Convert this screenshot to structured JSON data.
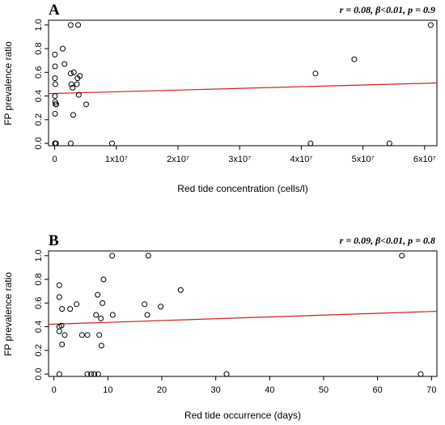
{
  "colors": {
    "axis": "#000000",
    "points": "#000000",
    "fit_line": "#cc2222",
    "background": "#ffffff"
  },
  "chart_data": [
    {
      "type": "scatter",
      "panel_label": "A",
      "stats": "r = 0.08, β<0.01, p = 0.9",
      "xlabel": "Red tide concentration (cells/l)",
      "ylabel": "FP prevalence ratio",
      "xlim": [
        -1000000,
        62000000
      ],
      "ylim": [
        -0.02,
        1.04
      ],
      "x_ticks": [
        {
          "value": 0,
          "label": "0"
        },
        {
          "value": 10000000,
          "label": "1x10⁷"
        },
        {
          "value": 20000000,
          "label": "2x10⁷"
        },
        {
          "value": 30000000,
          "label": "3x10⁷"
        },
        {
          "value": 40000000,
          "label": "4x10⁷"
        },
        {
          "value": 50000000,
          "label": "5x10⁷"
        },
        {
          "value": 60000000,
          "label": "6x10⁷"
        }
      ],
      "y_ticks": [
        {
          "value": 0,
          "label": "0.0"
        },
        {
          "value": 0.2,
          "label": "0.2"
        },
        {
          "value": 0.4,
          "label": "0.4"
        },
        {
          "value": 0.6,
          "label": "0.6"
        },
        {
          "value": 0.8,
          "label": "0.8"
        },
        {
          "value": 1.0,
          "label": "1.0"
        }
      ],
      "points": [
        {
          "x": 20000,
          "y": 0.75
        },
        {
          "x": 50000,
          "y": 0.65
        },
        {
          "x": 30000,
          "y": 0.55
        },
        {
          "x": 100000,
          "y": 0.5
        },
        {
          "x": 40000,
          "y": 0.4
        },
        {
          "x": 80000,
          "y": 0.35
        },
        {
          "x": 150000,
          "y": 0.33
        },
        {
          "x": 250000,
          "y": 0.33
        },
        {
          "x": 60000,
          "y": 0.25
        },
        {
          "x": 50000,
          "y": 0.0
        },
        {
          "x": 120000,
          "y": 0.0
        },
        {
          "x": 200000,
          "y": 0.0
        },
        {
          "x": 1300000,
          "y": 0.8
        },
        {
          "x": 1600000,
          "y": 0.67
        },
        {
          "x": 2600000,
          "y": 1.0
        },
        {
          "x": 3800000,
          "y": 1.0
        },
        {
          "x": 2600000,
          "y": 0.59
        },
        {
          "x": 3100000,
          "y": 0.6
        },
        {
          "x": 3700000,
          "y": 0.55
        },
        {
          "x": 4100000,
          "y": 0.57
        },
        {
          "x": 2700000,
          "y": 0.5
        },
        {
          "x": 3600000,
          "y": 0.5
        },
        {
          "x": 2900000,
          "y": 0.47
        },
        {
          "x": 3900000,
          "y": 0.41
        },
        {
          "x": 5100000,
          "y": 0.33
        },
        {
          "x": 3000000,
          "y": 0.24
        },
        {
          "x": 2600000,
          "y": 0.0
        },
        {
          "x": 9300000,
          "y": 0.0
        },
        {
          "x": 41500000,
          "y": 0.0
        },
        {
          "x": 42300000,
          "y": 0.59
        },
        {
          "x": 48600000,
          "y": 0.71
        },
        {
          "x": 54300000,
          "y": 0.0
        },
        {
          "x": 61000000,
          "y": 1.0
        }
      ],
      "fit_line": {
        "x": [
          -1000000,
          62000000
        ],
        "y": [
          0.42,
          0.51
        ]
      }
    },
    {
      "type": "scatter",
      "panel_label": "B",
      "stats": "r = 0.09, β<0.01, p = 0.8",
      "xlabel": "Red tide occurrence (days)",
      "ylabel": "FP prevalence ratio",
      "xlim": [
        -1,
        71
      ],
      "ylim": [
        -0.02,
        1.04
      ],
      "x_ticks": [
        {
          "value": 0,
          "label": "0"
        },
        {
          "value": 10,
          "label": "10"
        },
        {
          "value": 20,
          "label": "20"
        },
        {
          "value": 30,
          "label": "30"
        },
        {
          "value": 40,
          "label": "40"
        },
        {
          "value": 50,
          "label": "50"
        },
        {
          "value": 60,
          "label": "60"
        },
        {
          "value": 70,
          "label": "70"
        }
      ],
      "y_ticks": [
        {
          "value": 0,
          "label": "0.0"
        },
        {
          "value": 0.2,
          "label": "0.2"
        },
        {
          "value": 0.4,
          "label": "0.4"
        },
        {
          "value": 0.6,
          "label": "0.6"
        },
        {
          "value": 0.8,
          "label": "0.8"
        },
        {
          "value": 1.0,
          "label": "1.0"
        }
      ],
      "points": [
        {
          "x": 1,
          "y": 0.75
        },
        {
          "x": 1,
          "y": 0.65
        },
        {
          "x": 1.5,
          "y": 0.55
        },
        {
          "x": 1,
          "y": 0.4
        },
        {
          "x": 1.4,
          "y": 0.41
        },
        {
          "x": 1,
          "y": 0.36
        },
        {
          "x": 2,
          "y": 0.33
        },
        {
          "x": 1.5,
          "y": 0.25
        },
        {
          "x": 1,
          "y": 0.0
        },
        {
          "x": 3,
          "y": 0.55
        },
        {
          "x": 4.2,
          "y": 0.59
        },
        {
          "x": 5.2,
          "y": 0.33
        },
        {
          "x": 6.2,
          "y": 0.33
        },
        {
          "x": 6.2,
          "y": 0.0
        },
        {
          "x": 6.9,
          "y": 0.0
        },
        {
          "x": 7.5,
          "y": 0.0
        },
        {
          "x": 8.2,
          "y": 0.0
        },
        {
          "x": 7.8,
          "y": 0.5
        },
        {
          "x": 8.1,
          "y": 0.67
        },
        {
          "x": 8.4,
          "y": 0.33
        },
        {
          "x": 8.7,
          "y": 0.47
        },
        {
          "x": 8.8,
          "y": 0.24
        },
        {
          "x": 9.0,
          "y": 0.6
        },
        {
          "x": 9.2,
          "y": 0.8
        },
        {
          "x": 10.8,
          "y": 1.0
        },
        {
          "x": 10.9,
          "y": 0.5
        },
        {
          "x": 16.8,
          "y": 0.59
        },
        {
          "x": 17.3,
          "y": 0.5
        },
        {
          "x": 17.5,
          "y": 1.0
        },
        {
          "x": 19.8,
          "y": 0.57
        },
        {
          "x": 23.5,
          "y": 0.71
        },
        {
          "x": 32,
          "y": 0.0
        },
        {
          "x": 64.5,
          "y": 1.0
        },
        {
          "x": 68,
          "y": 0.0
        }
      ],
      "fit_line": {
        "x": [
          -1,
          71
        ],
        "y": [
          0.42,
          0.53
        ]
      }
    }
  ]
}
